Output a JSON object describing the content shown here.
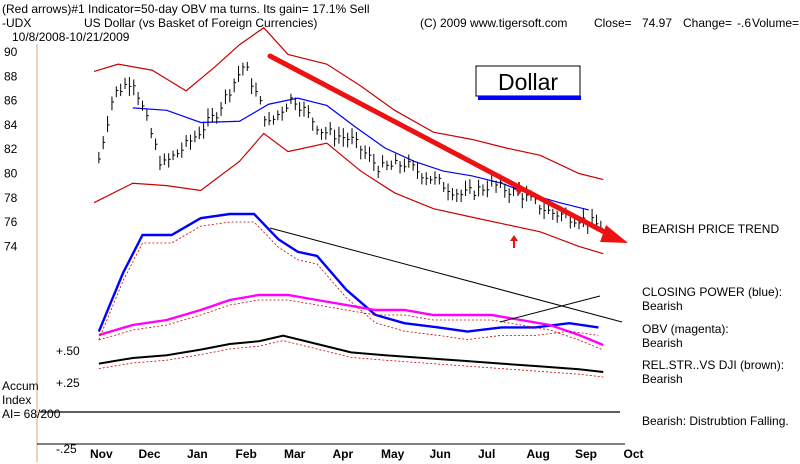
{
  "header": {
    "line1_left": "(Red arrows)#1 Indicator=50-day OBV ma turns. Its gain= 17.1% Sell",
    "symbol": "-UDX",
    "name": "US Dollar (vs Basket of Foreign Currencies)",
    "date_range": "10/8/2008-10/21/2009",
    "copyright": "(C) 2009 www.tigersoft.com",
    "close_label": "Close=",
    "close_value": "74.97",
    "change_label": "Change=",
    "change_value": "-.6",
    "volume_label": "Volume="
  },
  "chart_data": {
    "type": "line",
    "title": "Dollar",
    "subtitle": "US Dollar (vs Basket of Foreign Currencies)",
    "x_ticks": [
      "Nov",
      "Dec",
      "Jan",
      "Feb",
      "Mar",
      "Apr",
      "May",
      "Jun",
      "Jul",
      "Aug",
      "Sep",
      "Oct"
    ],
    "price_axis": {
      "ticks": [
        90,
        88,
        86,
        84,
        82,
        80,
        78,
        76,
        74
      ],
      "range": [
        73,
        91
      ]
    },
    "indicator_axis": {
      "ticks": [
        "+.50",
        "+.25",
        "-.25"
      ]
    },
    "series": [
      {
        "name": "UDX close",
        "x": [
          0.1,
          0.4,
          0.8,
          1.4,
          1.9,
          2.5,
          3.1,
          3.6,
          4.1,
          4.7,
          5.3,
          5.9,
          6.4,
          7.0,
          7.6,
          8.2,
          8.8,
          9.4,
          10.0,
          10.5
        ],
        "values": [
          81.2,
          86.5,
          87.8,
          80.6,
          82.3,
          84.8,
          89.0,
          84.0,
          86.3,
          83.5,
          82.8,
          80.4,
          80.8,
          79.5,
          78.2,
          79.1,
          78.3,
          76.8,
          76.3,
          75.6
        ]
      },
      {
        "name": "50-day moving average (blue)",
        "x": [
          0.8,
          1.5,
          2.2,
          3.0,
          3.6,
          4.2,
          4.8,
          5.4,
          6.0,
          6.6,
          7.2,
          7.8,
          8.4,
          9.0,
          9.6,
          10.2
        ],
        "values": [
          85.4,
          85.2,
          84.2,
          84.3,
          85.7,
          86.2,
          85.6,
          83.8,
          82.1,
          81.0,
          80.2,
          79.8,
          79.2,
          78.3,
          77.6,
          77.0
        ]
      },
      {
        "name": "Upper band (red)",
        "x": [
          0.0,
          0.5,
          1.2,
          1.9,
          2.5,
          3.0,
          3.5,
          4.0,
          4.8,
          5.5,
          6.2,
          7.0,
          7.8,
          8.5,
          9.2,
          10.0,
          10.5
        ],
        "values": [
          88.4,
          89.0,
          88.5,
          86.8,
          88.8,
          90.6,
          92.0,
          89.8,
          89.0,
          87.2,
          85.2,
          83.4,
          82.8,
          82.1,
          81.5,
          80.0,
          79.5
        ]
      },
      {
        "name": "Lower band (red)",
        "x": [
          0.0,
          0.8,
          1.5,
          2.2,
          3.0,
          3.5,
          4.0,
          4.8,
          5.5,
          6.2,
          7.0,
          7.8,
          8.5,
          9.2,
          10.0,
          10.5
        ],
        "values": [
          77.6,
          79.2,
          79.0,
          78.6,
          81.0,
          83.3,
          81.8,
          82.5,
          80.2,
          78.4,
          77.1,
          76.4,
          75.8,
          75.2,
          74.0,
          73.4
        ]
      },
      {
        "name": "Closing Power (blue)",
        "x": [
          0.1,
          0.6,
          1.0,
          1.6,
          2.2,
          2.8,
          3.3,
          3.8,
          4.2,
          4.6,
          5.2,
          5.8,
          6.4,
          7.1,
          7.7,
          8.4,
          9.1,
          9.8,
          10.4
        ],
        "values": [
          0.72,
          0.86,
          0.95,
          0.95,
          0.99,
          1.0,
          1.0,
          0.94,
          0.91,
          0.9,
          0.82,
          0.76,
          0.74,
          0.73,
          0.72,
          0.73,
          0.73,
          0.74,
          0.73
        ]
      },
      {
        "name": "OBV (magenta)",
        "x": [
          0.1,
          0.8,
          1.5,
          2.2,
          2.8,
          3.4,
          4.0,
          4.6,
          5.2,
          5.8,
          6.4,
          7.0,
          7.6,
          8.2,
          8.8,
          9.4,
          10.0,
          10.5
        ],
        "values": [
          0.72,
          0.74,
          0.75,
          0.77,
          0.79,
          0.8,
          0.8,
          0.79,
          0.78,
          0.77,
          0.77,
          0.76,
          0.76,
          0.76,
          0.75,
          0.74,
          0.72,
          0.7
        ]
      },
      {
        "name": "Relative strength vs DJI (brown)",
        "x": [
          0.1,
          0.8,
          1.5,
          2.2,
          2.8,
          3.4,
          3.9,
          4.6,
          5.3,
          6.0,
          6.8,
          7.6,
          8.4,
          9.2,
          10.0,
          10.5
        ],
        "values": [
          0.5,
          0.52,
          0.53,
          0.55,
          0.57,
          0.58,
          0.6,
          0.57,
          0.54,
          0.53,
          0.52,
          0.51,
          0.5,
          0.49,
          0.48,
          0.47
        ]
      }
    ],
    "annotations": [
      {
        "text": "Dollar",
        "kind": "boxed title"
      },
      {
        "text": "BEARISH PRICE TREND",
        "kind": "red arrow trendline from Mar high to Oct"
      },
      {
        "text": "CLOSING POWER (blue):",
        "value": "Bearish"
      },
      {
        "text": "OBV (magenta):",
        "value": "Bearish"
      },
      {
        "text": "REL.STR..VS DJI (brown):",
        "value": "Bearish"
      },
      {
        "text": "Bearish: Distrubtion Falling.",
        "kind": "accumulation index note"
      }
    ],
    "accum_index": {
      "label_line1": "Accum",
      "label_line2": "Index",
      "label_line3": "AI= 68/200"
    }
  },
  "colors": {
    "price": "#000000",
    "ma50": "#0000ff",
    "bands": "#cc0000",
    "arrow": "#ee1111",
    "closing_power": "#0000ff",
    "obv": "#ff00ff",
    "rel_str": "#000000",
    "trendline": "#000000"
  }
}
